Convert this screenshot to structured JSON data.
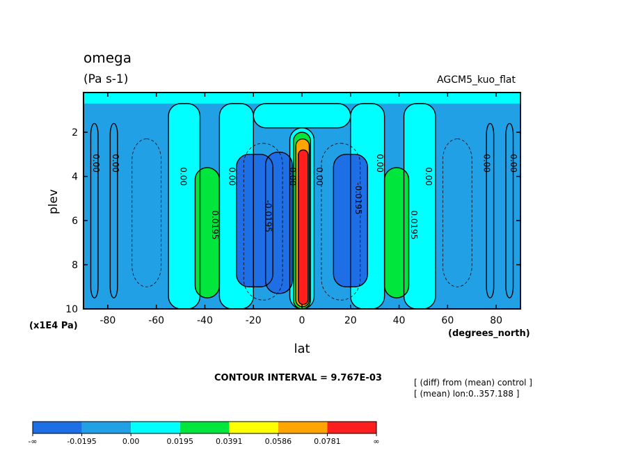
{
  "chart_data": {
    "type": "heatmap",
    "title": "omega",
    "units": "(Pa s-1)",
    "experiment": "AGCM5_kuo_flat",
    "xlabel": "lat",
    "x_units": "(degrees_north)",
    "ylabel": "plev",
    "y_units": "(x1E4 Pa)",
    "xlim": [
      -90,
      90
    ],
    "ylim": [
      0.2,
      10
    ],
    "y_inverted": true,
    "x_ticks": [
      "-80",
      "-60",
      "-40",
      "-20",
      "0",
      "20",
      "40",
      "60",
      "80"
    ],
    "y_ticks": [
      "2",
      "4",
      "6",
      "8",
      "10"
    ],
    "contour_interval_text": "CONTOUR INTERVAL = 9.767E-03",
    "notes": [
      "[ (diff) from (mean) control ]",
      "[ (mean) lon:0..357.188 ]"
    ],
    "contour_labels": [
      {
        "text": "0.00",
        "lat": -86,
        "plev": 3.4
      },
      {
        "text": "0.00",
        "lat": -78,
        "plev": 3.4
      },
      {
        "text": "0.00",
        "lat": -50,
        "plev": 4.0
      },
      {
        "text": "0.00",
        "lat": -30,
        "plev": 4.0
      },
      {
        "text": "0.0195",
        "lat": -37,
        "plev": 6.2
      },
      {
        "text": "-0.0195",
        "lat": -15,
        "plev": 5.8
      },
      {
        "text": "0.00",
        "lat": -5,
        "plev": 4.0
      },
      {
        "text": "0.00",
        "lat": 6,
        "plev": 4.0
      },
      {
        "text": "-0.0195",
        "lat": 22,
        "plev": 5.0
      },
      {
        "text": "0.00",
        "lat": 31,
        "plev": 3.4
      },
      {
        "text": "0.00",
        "lat": 51,
        "plev": 4.0
      },
      {
        "text": "0.0195",
        "lat": 45,
        "plev": 6.2
      },
      {
        "text": "0.00",
        "lat": 75,
        "plev": 3.4
      },
      {
        "text": "0.00",
        "lat": 86,
        "plev": 3.4
      }
    ],
    "colorbar": {
      "labels": [
        "-∞",
        "-0.0195",
        "0.00",
        "0.0195",
        "0.0391",
        "0.0586",
        "0.0781",
        "∞"
      ],
      "colors": [
        "#1e6ee6",
        "#22a0e6",
        "#00ffff",
        "#00e63c",
        "#ffff00",
        "#ffa500",
        "#ff1e1e"
      ]
    },
    "regions": [
      {
        "lat": [
          -90,
          90
        ],
        "plev": [
          0.2,
          10
        ],
        "color": "#22a0e6"
      },
      {
        "lat": [
          -90,
          90
        ],
        "plev": [
          0.2,
          0.7
        ],
        "color": "#00ffff"
      },
      {
        "lat": [
          -55,
          -42
        ],
        "plev": [
          0.7,
          10
        ],
        "color": "#00ffff"
      },
      {
        "lat": [
          -34,
          -20
        ],
        "plev": [
          0.7,
          10
        ],
        "color": "#00ffff"
      },
      {
        "lat": [
          -20,
          20
        ],
        "plev": [
          0.7,
          1.8
        ],
        "color": "#00ffff"
      },
      {
        "lat": [
          -5,
          5
        ],
        "plev": [
          1.8,
          10
        ],
        "color": "#00ffff"
      },
      {
        "lat": [
          20,
          34
        ],
        "plev": [
          0.7,
          10
        ],
        "color": "#00ffff"
      },
      {
        "lat": [
          42,
          55
        ],
        "plev": [
          0.7,
          10
        ],
        "color": "#00ffff"
      },
      {
        "lat": [
          -44,
          -34
        ],
        "plev": [
          3.6,
          9.5
        ],
        "color": "#00e63c"
      },
      {
        "lat": [
          -27,
          -12
        ],
        "plev": [
          3.0,
          9.0
        ],
        "color": "#1e6ee6"
      },
      {
        "lat": [
          -15,
          -4
        ],
        "plev": [
          2.9,
          9.3
        ],
        "color": "#1e6ee6"
      },
      {
        "lat": [
          -3.5,
          3.5
        ],
        "plev": [
          2.0,
          10
        ],
        "color": "#00e63c"
      },
      {
        "lat": [
          -2.5,
          3.0
        ],
        "plev": [
          2.3,
          9.9
        ],
        "color": "#ffa500"
      },
      {
        "lat": [
          -1.5,
          2.5
        ],
        "plev": [
          2.8,
          9.8
        ],
        "color": "#ff1e1e"
      },
      {
        "lat": [
          13,
          27
        ],
        "plev": [
          3.0,
          9.0
        ],
        "color": "#1e6ee6"
      },
      {
        "lat": [
          34,
          44
        ],
        "plev": [
          3.6,
          9.5
        ],
        "color": "#00e63c"
      }
    ]
  }
}
